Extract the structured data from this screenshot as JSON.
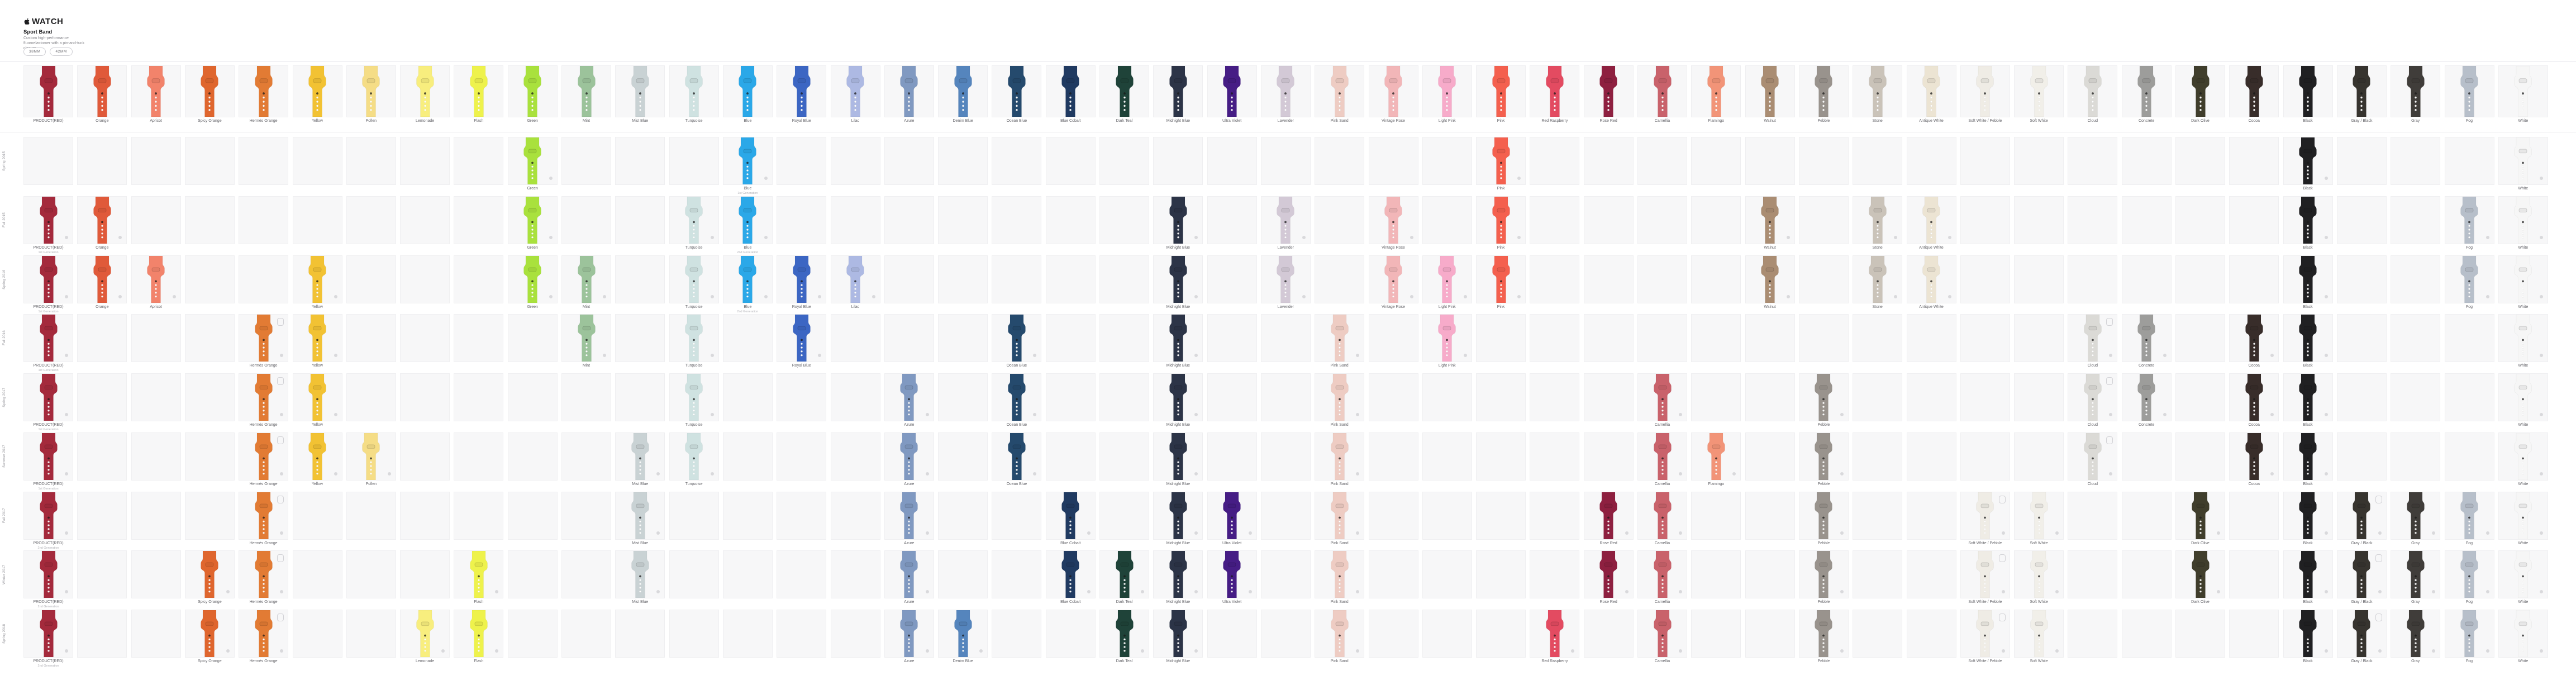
{
  "header": {
    "brand": "WATCH",
    "title": "Sport Band",
    "description": "Custom high-performance fluoroelastomer with a pin-and-tuck closure.",
    "size_buttons": [
      "38MM",
      "42MM"
    ]
  },
  "icons": {
    "apple_logo": "apple-logo-icon",
    "case_dot": "case-dot-icon",
    "watch_case": "watch-case-icon"
  },
  "columns": [
    {
      "name": "PRODUCT(RED)",
      "color": "#a42a3c"
    },
    {
      "name": "Orange",
      "color": "#e05a3a"
    },
    {
      "name": "Apricot",
      "color": "#f2836b"
    },
    {
      "name": "Spicy Orange",
      "color": "#df662e"
    },
    {
      "name": "Hermès Orange",
      "color": "#e27b34"
    },
    {
      "name": "Yellow",
      "color": "#f2c233"
    },
    {
      "name": "Pollen",
      "color": "#f5dd86"
    },
    {
      "name": "Lemonade",
      "color": "#f8ee7e"
    },
    {
      "name": "Flash",
      "color": "#eef24c"
    },
    {
      "name": "Green",
      "color": "#a9e13d"
    },
    {
      "name": "Mint",
      "color": "#9cc39b"
    },
    {
      "name": "Mist Blue",
      "color": "#c9d2d4"
    },
    {
      "name": "Turquoise",
      "color": "#cfe2e1"
    },
    {
      "name": "Blue",
      "color": "#2ba8e8"
    },
    {
      "name": "Royal Blue",
      "color": "#3c66c3"
    },
    {
      "name": "Lilac",
      "color": "#adb9e3"
    },
    {
      "name": "Azure",
      "color": "#8099c1"
    },
    {
      "name": "Denim Blue",
      "color": "#5585bd"
    },
    {
      "name": "Ocean Blue",
      "color": "#254a6d"
    },
    {
      "name": "Blue Cobalt",
      "color": "#203a61"
    },
    {
      "name": "Dark Teal",
      "color": "#1f4339"
    },
    {
      "name": "Midnight Blue",
      "color": "#2c3447"
    },
    {
      "name": "Ultra Violet",
      "color": "#461d85"
    },
    {
      "name": "Lavender",
      "color": "#d3c9d6"
    },
    {
      "name": "Pink Sand",
      "color": "#eeccc3"
    },
    {
      "name": "Vintage Rose",
      "color": "#f2b6b8"
    },
    {
      "name": "Light Pink",
      "color": "#f7abca"
    },
    {
      "name": "Pink",
      "color": "#f4604e"
    },
    {
      "name": "Red Raspberry",
      "color": "#e34b61"
    },
    {
      "name": "Rose Red",
      "color": "#8e2040"
    },
    {
      "name": "Camellia",
      "color": "#c9626b"
    },
    {
      "name": "Flamingo",
      "color": "#f29478"
    },
    {
      "name": "Walnut",
      "color": "#aa8d73"
    },
    {
      "name": "Pebble",
      "color": "#99938d"
    },
    {
      "name": "Stone",
      "color": "#cac3b9"
    },
    {
      "name": "Antique White",
      "color": "#ece4d3"
    },
    {
      "name": "Soft White / Pebble",
      "color": "#efece5"
    },
    {
      "name": "Soft White",
      "color": "#f1efe9"
    },
    {
      "name": "Cloud",
      "color": "#dbdad6"
    },
    {
      "name": "Concrete",
      "color": "#9d9d9b"
    },
    {
      "name": "Dark Olive",
      "color": "#403e2c"
    },
    {
      "name": "Cocoa",
      "color": "#382d2a"
    },
    {
      "name": "Black",
      "color": "#202022"
    },
    {
      "name": "Gray / Black",
      "color": "#37342f"
    },
    {
      "name": "Gray",
      "color": "#403d3a"
    },
    {
      "name": "Fog",
      "color": "#b7bfca"
    },
    {
      "name": "White",
      "color": "#f6f6f6"
    }
  ],
  "rows": [
    {
      "label": "Spring 2015",
      "cells": [
        {
          "c": 9
        },
        {
          "c": 13,
          "sub": "1st Generation"
        },
        {
          "c": 27
        },
        {
          "c": 42
        },
        {
          "c": 46
        }
      ]
    },
    {
      "label": "Fall 2015",
      "cells": [
        {
          "c": 0,
          "sub": "1st Generation"
        },
        {
          "c": 1
        },
        {
          "c": 9
        },
        {
          "c": 12
        },
        {
          "c": 13,
          "sub": "2nd Generation"
        },
        {
          "c": 21
        },
        {
          "c": 23
        },
        {
          "c": 25
        },
        {
          "c": 27
        },
        {
          "c": 32
        },
        {
          "c": 34
        },
        {
          "c": 35
        },
        {
          "c": 42
        },
        {
          "c": 45
        },
        {
          "c": 46
        }
      ]
    },
    {
      "label": "Spring 2016",
      "cells": [
        {
          "c": 0,
          "sub": "1st Generation"
        },
        {
          "c": 1
        },
        {
          "c": 2
        },
        {
          "c": 5
        },
        {
          "c": 9
        },
        {
          "c": 10
        },
        {
          "c": 12
        },
        {
          "c": 13,
          "sub": "2nd Generation"
        },
        {
          "c": 14
        },
        {
          "c": 15
        },
        {
          "c": 21
        },
        {
          "c": 23
        },
        {
          "c": 25
        },
        {
          "c": 26
        },
        {
          "c": 27
        },
        {
          "c": 32
        },
        {
          "c": 34
        },
        {
          "c": 35
        },
        {
          "c": 42
        },
        {
          "c": 45
        },
        {
          "c": 46
        }
      ]
    },
    {
      "label": "Fall 2016",
      "cells": [
        {
          "c": 0,
          "sub": "1st Generation"
        },
        {
          "c": 4,
          "case": true
        },
        {
          "c": 5
        },
        {
          "c": 10
        },
        {
          "c": 12
        },
        {
          "c": 14
        },
        {
          "c": 18
        },
        {
          "c": 21
        },
        {
          "c": 24
        },
        {
          "c": 26
        },
        {
          "c": 38,
          "case": true
        },
        {
          "c": 39
        },
        {
          "c": 41
        },
        {
          "c": 42
        },
        {
          "c": 46
        }
      ]
    },
    {
      "label": "Spring 2017",
      "cells": [
        {
          "c": 0,
          "sub": "1st Generation"
        },
        {
          "c": 4,
          "case": true
        },
        {
          "c": 5
        },
        {
          "c": 12
        },
        {
          "c": 16
        },
        {
          "c": 18
        },
        {
          "c": 21
        },
        {
          "c": 24
        },
        {
          "c": 30
        },
        {
          "c": 33
        },
        {
          "c": 38,
          "case": true
        },
        {
          "c": 39
        },
        {
          "c": 41
        },
        {
          "c": 42
        },
        {
          "c": 46
        }
      ]
    },
    {
      "label": "Summer 2017",
      "cells": [
        {
          "c": 0,
          "sub": "1st Generation"
        },
        {
          "c": 4,
          "case": true
        },
        {
          "c": 5
        },
        {
          "c": 6
        },
        {
          "c": 11
        },
        {
          "c": 12
        },
        {
          "c": 16
        },
        {
          "c": 18
        },
        {
          "c": 21
        },
        {
          "c": 24
        },
        {
          "c": 30
        },
        {
          "c": 31
        },
        {
          "c": 33
        },
        {
          "c": 38,
          "case": true
        },
        {
          "c": 41
        },
        {
          "c": 42
        },
        {
          "c": 46
        }
      ]
    },
    {
      "label": "Fall 2017",
      "cells": [
        {
          "c": 0,
          "sub": "2nd Generation"
        },
        {
          "c": 4,
          "case": true
        },
        {
          "c": 11
        },
        {
          "c": 16
        },
        {
          "c": 19
        },
        {
          "c": 21
        },
        {
          "c": 22
        },
        {
          "c": 24
        },
        {
          "c": 29
        },
        {
          "c": 30
        },
        {
          "c": 33
        },
        {
          "c": 36,
          "case": true
        },
        {
          "c": 37
        },
        {
          "c": 40
        },
        {
          "c": 42
        },
        {
          "c": 43,
          "case": true
        },
        {
          "c": 44
        },
        {
          "c": 45
        },
        {
          "c": 46
        }
      ]
    },
    {
      "label": "Winter 2017",
      "cells": [
        {
          "c": 0,
          "sub": "2nd Generation"
        },
        {
          "c": 3
        },
        {
          "c": 4,
          "case": true
        },
        {
          "c": 8
        },
        {
          "c": 11
        },
        {
          "c": 16
        },
        {
          "c": 19
        },
        {
          "c": 20
        },
        {
          "c": 21
        },
        {
          "c": 22
        },
        {
          "c": 24
        },
        {
          "c": 29
        },
        {
          "c": 30
        },
        {
          "c": 33
        },
        {
          "c": 36,
          "case": true
        },
        {
          "c": 37
        },
        {
          "c": 40
        },
        {
          "c": 42
        },
        {
          "c": 43,
          "case": true
        },
        {
          "c": 44
        },
        {
          "c": 45
        },
        {
          "c": 46
        }
      ]
    },
    {
      "label": "Spring 2018",
      "cells": [
        {
          "c": 0,
          "sub": "2nd Generation"
        },
        {
          "c": 3
        },
        {
          "c": 4,
          "case": true
        },
        {
          "c": 7
        },
        {
          "c": 8
        },
        {
          "c": 16
        },
        {
          "c": 17
        },
        {
          "c": 20
        },
        {
          "c": 21
        },
        {
          "c": 24
        },
        {
          "c": 28
        },
        {
          "c": 30
        },
        {
          "c": 33
        },
        {
          "c": 36,
          "case": true
        },
        {
          "c": 37
        },
        {
          "c": 42
        },
        {
          "c": 43,
          "case": true
        },
        {
          "c": 44
        },
        {
          "c": 45
        },
        {
          "c": 46
        }
      ]
    }
  ],
  "layout_colors": {
    "cell_bg": "#f7f7f8",
    "divider": "#e8e8ed",
    "label_gray": "#66666b",
    "sublabel_gray": "#b1b1b6"
  }
}
